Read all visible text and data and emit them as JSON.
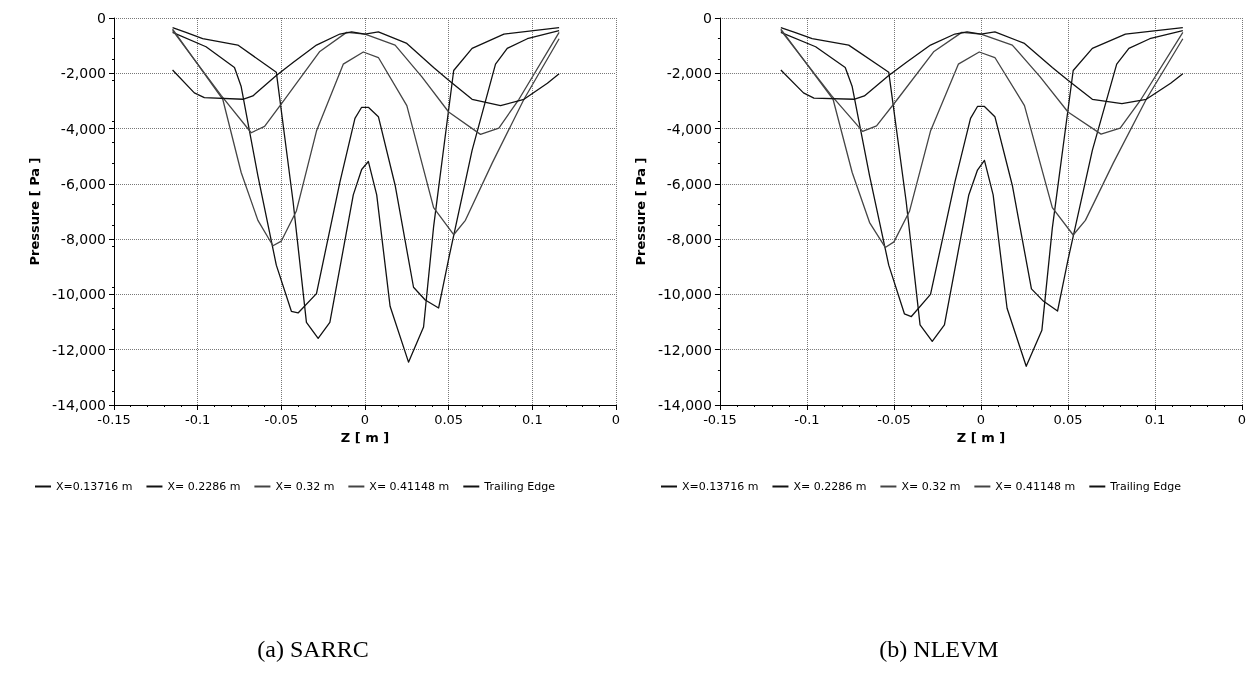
{
  "chart_data": [
    {
      "type": "line",
      "title": "(a) SARRC",
      "xlabel": "Z [ m ]",
      "ylabel": "Pressure [ Pa ]",
      "xlim": [
        -0.15,
        0.15
      ],
      "xticks": [
        -0.15,
        -0.1,
        -0.05,
        0,
        0.05,
        0.1,
        {
          "value": 0.15,
          "label": "0"
        }
      ],
      "ylim": [
        -14000,
        0
      ],
      "yticks": [
        {
          "value": -14000,
          "label": "-14,000"
        },
        {
          "value": -12000,
          "label": "-12,000"
        },
        {
          "value": -10000,
          "label": "-10,000"
        },
        {
          "value": -8000,
          "label": "-8,000"
        },
        {
          "value": -6000,
          "label": "-6,000"
        },
        {
          "value": -4000,
          "label": "-4,000"
        },
        {
          "value": -2000,
          "label": "-2,000"
        },
        0
      ],
      "grid": true,
      "legend": "bottom",
      "marker": "none",
      "line_style": "solid",
      "series": [
        {
          "name": "X=0.13716 m",
          "color": "#111111",
          "x": [
            -0.115,
            -0.107,
            -0.097,
            -0.076,
            -0.057,
            -0.053,
            -0.043,
            -0.035,
            -0.028,
            -0.021,
            -0.007,
            -0.002,
            0.002,
            0.007,
            0.015,
            0.026,
            0.035,
            0.041,
            0.053,
            0.064,
            0.083,
            0.116
          ],
          "values": [
            -350,
            -520,
            -750,
            -980,
            -1790,
            -1960,
            -6630,
            -11010,
            -11590,
            -11010,
            -6400,
            -5480,
            -5190,
            -6400,
            -10430,
            -12450,
            -11180,
            -7550,
            -1900,
            -1100,
            -580,
            -350
          ]
        },
        {
          "name": "X= 0.2286 m",
          "color": "#111111",
          "x": [
            -0.115,
            -0.095,
            -0.078,
            -0.074,
            -0.064,
            -0.053,
            -0.044,
            -0.04,
            -0.029,
            -0.015,
            -0.006,
            -0.002,
            0.002,
            0.008,
            0.018,
            0.029,
            0.036,
            0.044,
            0.05,
            0.064,
            0.078,
            0.085,
            0.097,
            0.116
          ],
          "values": [
            -520,
            -1040,
            -1790,
            -2480,
            -5710,
            -8940,
            -10610,
            -10670,
            -9970,
            -5940,
            -3630,
            -3230,
            -3230,
            -3570,
            -6050,
            -9740,
            -10200,
            -10490,
            -8710,
            -4790,
            -1670,
            -1100,
            -750,
            -460
          ]
        },
        {
          "name": "X= 0.32 m",
          "color": "#444444",
          "x": [
            -0.115,
            -0.085,
            -0.074,
            -0.064,
            -0.055,
            -0.05,
            -0.041,
            -0.029,
            -0.013,
            -0.001,
            0.008,
            0.025,
            0.041,
            0.053,
            0.06,
            0.076,
            0.095,
            0.116
          ],
          "values": [
            -400,
            -2940,
            -5590,
            -7320,
            -8240,
            -8070,
            -6980,
            -4090,
            -1670,
            -1230,
            -1430,
            -3170,
            -6860,
            -7840,
            -7320,
            -5250,
            -2940,
            -750
          ]
        },
        {
          "name": "X= 0.41148 m",
          "color": "#444444",
          "x": [
            -0.115,
            -0.086,
            -0.068,
            -0.06,
            -0.048,
            -0.027,
            -0.011,
            0,
            0.018,
            0.034,
            0.05,
            0.069,
            0.08,
            0.092,
            0.116
          ],
          "values": [
            -450,
            -2800,
            -4150,
            -3920,
            -2940,
            -1210,
            -520,
            -580,
            -980,
            -2130,
            -3400,
            -4210,
            -3980,
            -2940,
            -520
          ]
        },
        {
          "name": "Trailing Edge",
          "color": "#111111",
          "x": [
            -0.115,
            -0.102,
            -0.096,
            -0.073,
            -0.067,
            -0.053,
            -0.043,
            -0.029,
            -0.015,
            -0.008,
            0,
            0.008,
            0.025,
            0.041,
            0.05,
            0.064,
            0.081,
            0.095,
            0.109,
            0.116
          ],
          "values": [
            -1880,
            -2710,
            -2880,
            -2940,
            -2820,
            -2080,
            -1610,
            -980,
            -580,
            -500,
            -580,
            -500,
            -920,
            -1790,
            -2250,
            -2940,
            -3170,
            -2940,
            -2360,
            -2020
          ]
        }
      ]
    },
    {
      "type": "line",
      "title": "(b) NLEVM",
      "xlabel": "Z [ m ]",
      "ylabel": "Pressure [ Pa ]",
      "xlim": [
        -0.15,
        0.15
      ],
      "xticks": [
        -0.15,
        -0.1,
        -0.05,
        0,
        0.05,
        0.1,
        {
          "value": 0.15,
          "label": "0"
        }
      ],
      "ylim": [
        -14000,
        0
      ],
      "yticks": [
        {
          "value": -14000,
          "label": "-14,000"
        },
        {
          "value": -12000,
          "label": "-12,000"
        },
        {
          "value": -10000,
          "label": "-10,000"
        },
        {
          "value": -8000,
          "label": "-8,000"
        },
        {
          "value": -6000,
          "label": "-6,000"
        },
        {
          "value": -4000,
          "label": "-4,000"
        },
        {
          "value": -2000,
          "label": "-2,000"
        },
        0
      ],
      "grid": true,
      "legend": "bottom",
      "marker": "none",
      "line_style": "solid",
      "series": [
        {
          "name": "X=0.13716 m",
          "color": "#111111",
          "x": [
            -0.115,
            -0.107,
            -0.097,
            -0.076,
            -0.057,
            -0.053,
            -0.043,
            -0.035,
            -0.028,
            -0.021,
            -0.007,
            -0.002,
            0.002,
            0.007,
            0.015,
            0.026,
            0.035,
            0.041,
            0.053,
            0.064,
            0.083,
            0.116
          ],
          "values": [
            -350,
            -520,
            -750,
            -980,
            -1790,
            -1960,
            -6630,
            -11100,
            -11700,
            -11100,
            -6400,
            -5500,
            -5150,
            -6400,
            -10500,
            -12600,
            -11300,
            -7600,
            -1900,
            -1100,
            -580,
            -350
          ]
        },
        {
          "name": "X= 0.2286 m",
          "color": "#111111",
          "x": [
            -0.115,
            -0.095,
            -0.078,
            -0.074,
            -0.064,
            -0.053,
            -0.044,
            -0.04,
            -0.029,
            -0.015,
            -0.006,
            -0.002,
            0.002,
            0.008,
            0.018,
            0.029,
            0.036,
            0.044,
            0.05,
            0.064,
            0.078,
            0.085,
            0.097,
            0.116
          ],
          "values": [
            -520,
            -1040,
            -1790,
            -2480,
            -5710,
            -8940,
            -10700,
            -10800,
            -10000,
            -5940,
            -3630,
            -3200,
            -3200,
            -3570,
            -6050,
            -9800,
            -10250,
            -10600,
            -8750,
            -4790,
            -1670,
            -1100,
            -750,
            -460
          ]
        },
        {
          "name": "X= 0.32 m",
          "color": "#444444",
          "x": [
            -0.115,
            -0.085,
            -0.074,
            -0.064,
            -0.055,
            -0.05,
            -0.041,
            -0.029,
            -0.013,
            -0.001,
            0.008,
            0.025,
            0.041,
            0.053,
            0.06,
            0.076,
            0.095,
            0.116
          ],
          "values": [
            -400,
            -2940,
            -5590,
            -7400,
            -8300,
            -8100,
            -6980,
            -4090,
            -1670,
            -1230,
            -1430,
            -3170,
            -6860,
            -7850,
            -7320,
            -5250,
            -2940,
            -750
          ]
        },
        {
          "name": "X= 0.41148 m",
          "color": "#444444",
          "x": [
            -0.115,
            -0.086,
            -0.068,
            -0.06,
            -0.048,
            -0.027,
            -0.011,
            0,
            0.018,
            0.034,
            0.05,
            0.069,
            0.08,
            0.092,
            0.116
          ],
          "values": [
            -450,
            -2800,
            -4100,
            -3900,
            -2940,
            -1210,
            -520,
            -580,
            -980,
            -2130,
            -3400,
            -4200,
            -3980,
            -2940,
            -520
          ]
        },
        {
          "name": "Trailing Edge",
          "color": "#111111",
          "x": [
            -0.115,
            -0.102,
            -0.096,
            -0.073,
            -0.067,
            -0.053,
            -0.043,
            -0.029,
            -0.015,
            -0.008,
            0,
            0.008,
            0.025,
            0.041,
            0.05,
            0.064,
            0.081,
            0.095,
            0.109,
            0.116
          ],
          "values": [
            -1880,
            -2710,
            -2900,
            -2940,
            -2820,
            -2080,
            -1610,
            -980,
            -580,
            -500,
            -580,
            -500,
            -920,
            -1790,
            -2250,
            -2940,
            -3100,
            -2940,
            -2360,
            -2020
          ]
        }
      ]
    }
  ]
}
